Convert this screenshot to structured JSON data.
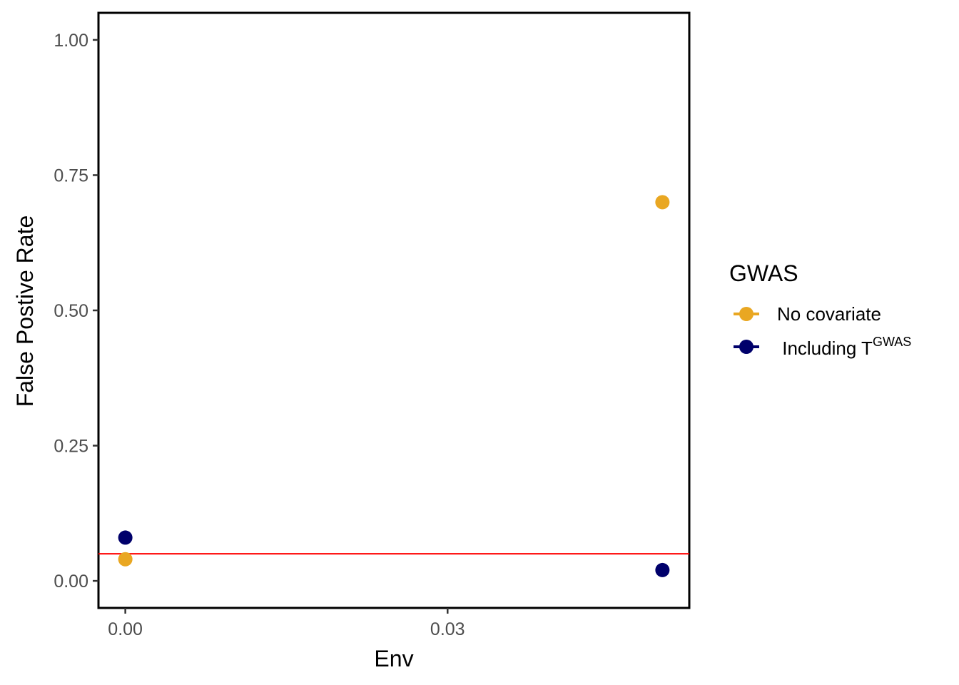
{
  "chart_data": {
    "type": "scatter",
    "title": "",
    "xlabel": "Env",
    "ylabel": "False Postive Rate",
    "x_ticks": [
      0.0,
      0.03
    ],
    "x_tick_labels": [
      "0.00",
      "0.03"
    ],
    "y_ticks": [
      0.0,
      0.25,
      0.5,
      0.75,
      1.0
    ],
    "y_tick_labels": [
      "0.00",
      "0.25",
      "0.50",
      "0.75",
      "1.00"
    ],
    "xlim": [
      -0.0025,
      0.0525
    ],
    "ylim": [
      -0.05,
      1.05
    ],
    "grid": false,
    "legend": {
      "title": "GWAS",
      "position": "right",
      "entries": [
        {
          "label": "No covariate",
          "color": "#E9A722"
        },
        {
          "label": " Including T",
          "superscript": "GWAS",
          "color": "#00006B"
        }
      ]
    },
    "series": [
      {
        "name": "No covariate",
        "color": "#E9A722",
        "x": [
          0.0,
          0.05
        ],
        "y": [
          0.04,
          0.7
        ]
      },
      {
        "name": "Including TGWAS",
        "color": "#00006B",
        "x": [
          0.0,
          0.05
        ],
        "y": [
          0.08,
          0.02
        ]
      }
    ],
    "reference_line": {
      "y": 0.05,
      "color": "#FF0000"
    }
  }
}
